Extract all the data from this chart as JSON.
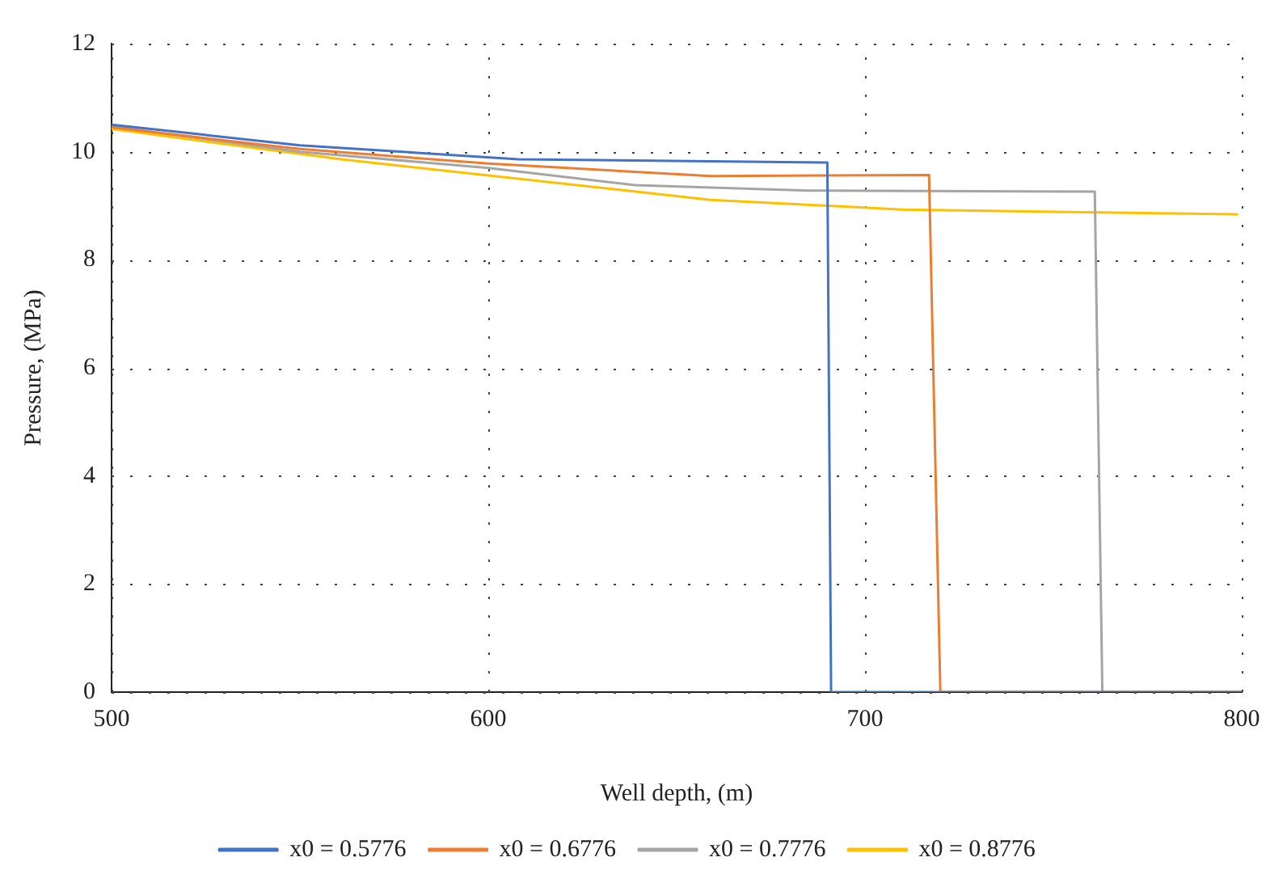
{
  "chart_data": {
    "type": "line",
    "xlabel": "Well depth, (m)",
    "ylabel": "Pressure, (MPa)",
    "xlim": [
      500,
      800
    ],
    "xticks": [
      500,
      600,
      700,
      800
    ],
    "ylim": [
      0,
      12
    ],
    "yticks": [
      0,
      2,
      4,
      6,
      8,
      10,
      12
    ],
    "grid": true,
    "legend": "bottom",
    "marker": "none",
    "line_style": "solid",
    "series": [
      {
        "name": "x0 = 0.5776",
        "color": "#4472c4",
        "x": [
          500,
          550,
          608,
          690,
          691,
          800
        ],
        "values": [
          10.5,
          10.12,
          9.86,
          9.8,
          0,
          0
        ]
      },
      {
        "name": "x0 = 0.6776",
        "color": "#ed7d31",
        "x": [
          500,
          550,
          600,
          659,
          717,
          720,
          800
        ],
        "values": [
          10.45,
          10.05,
          9.78,
          9.55,
          9.57,
          0,
          0
        ]
      },
      {
        "name": "x0 = 0.7776",
        "color": "#a5a5a5",
        "x": [
          500,
          550,
          600,
          639,
          685,
          761,
          763,
          800
        ],
        "values": [
          10.47,
          10.0,
          9.7,
          9.38,
          9.28,
          9.26,
          0,
          0
        ]
      },
      {
        "name": "x0 = 0.8776",
        "color": "#ffc000",
        "x": [
          500,
          561,
          659,
          710,
          799
        ],
        "values": [
          10.42,
          9.86,
          9.11,
          8.93,
          8.84
        ]
      }
    ]
  }
}
